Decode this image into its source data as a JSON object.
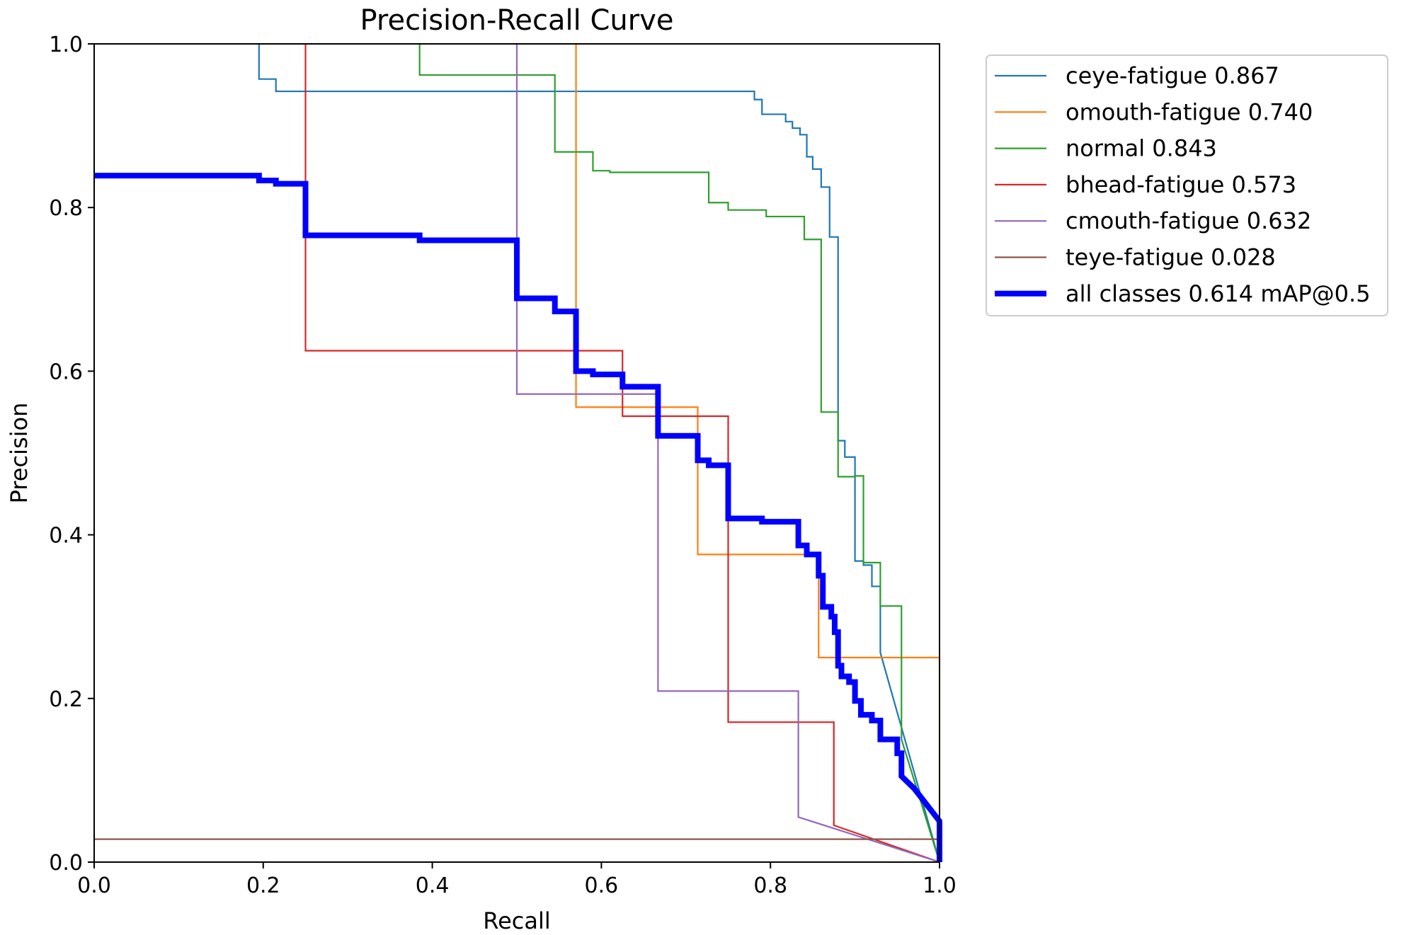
{
  "chart_data": {
    "type": "line",
    "title": "Precision-Recall Curve",
    "xlabel": "Recall",
    "ylabel": "Precision",
    "xlim": [
      0,
      1
    ],
    "ylim": [
      0,
      1
    ],
    "xticks": [
      0.0,
      0.2,
      0.4,
      0.6,
      0.8,
      1.0
    ],
    "yticks": [
      0.0,
      0.2,
      0.4,
      0.6,
      0.8,
      1.0
    ],
    "xtick_labels": [
      "0.0",
      "0.2",
      "0.4",
      "0.6",
      "0.8",
      "1.0"
    ],
    "ytick_labels": [
      "0.0",
      "0.2",
      "0.4",
      "0.6",
      "0.8",
      "1.0"
    ],
    "grid": false,
    "legend_position": "outside-top-right",
    "series": [
      {
        "name": "ceye-fatigue",
        "legend_label": "ceye-fatigue 0.867",
        "ap": 0.867,
        "color": "#1f77b4",
        "emphasis": false,
        "points": [
          [
            0.195,
            1.0
          ],
          [
            0.195,
            0.957
          ],
          [
            0.215,
            0.957
          ],
          [
            0.215,
            0.942
          ],
          [
            0.781,
            0.942
          ],
          [
            0.781,
            0.932
          ],
          [
            0.79,
            0.932
          ],
          [
            0.79,
            0.914
          ],
          [
            0.818,
            0.914
          ],
          [
            0.818,
            0.905
          ],
          [
            0.826,
            0.905
          ],
          [
            0.826,
            0.897
          ],
          [
            0.835,
            0.897
          ],
          [
            0.835,
            0.889
          ],
          [
            0.843,
            0.889
          ],
          [
            0.843,
            0.862
          ],
          [
            0.85,
            0.862
          ],
          [
            0.85,
            0.847
          ],
          [
            0.86,
            0.847
          ],
          [
            0.86,
            0.825
          ],
          [
            0.87,
            0.825
          ],
          [
            0.87,
            0.764
          ],
          [
            0.88,
            0.764
          ],
          [
            0.88,
            0.515
          ],
          [
            0.888,
            0.515
          ],
          [
            0.888,
            0.495
          ],
          [
            0.9,
            0.495
          ],
          [
            0.9,
            0.368
          ],
          [
            0.91,
            0.368
          ],
          [
            0.91,
            0.363
          ],
          [
            0.92,
            0.363
          ],
          [
            0.92,
            0.337
          ],
          [
            0.93,
            0.337
          ],
          [
            0.93,
            0.256
          ],
          [
            1.0,
            0.0
          ]
        ]
      },
      {
        "name": "omouth-fatigue",
        "legend_label": "omouth-fatigue 0.740",
        "ap": 0.74,
        "color": "#ff7f0e",
        "emphasis": false,
        "points": [
          [
            0.57,
            1.0
          ],
          [
            0.57,
            0.556
          ],
          [
            0.714,
            0.556
          ],
          [
            0.714,
            0.376
          ],
          [
            0.857,
            0.376
          ],
          [
            0.857,
            0.25
          ],
          [
            1.0,
            0.25
          ],
          [
            1.0,
            0.0
          ]
        ]
      },
      {
        "name": "normal",
        "legend_label": "normal 0.843",
        "ap": 0.843,
        "color": "#2ca02c",
        "emphasis": false,
        "points": [
          [
            0.385,
            1.0
          ],
          [
            0.385,
            0.962
          ],
          [
            0.545,
            0.962
          ],
          [
            0.545,
            0.868
          ],
          [
            0.59,
            0.868
          ],
          [
            0.59,
            0.845
          ],
          [
            0.61,
            0.845
          ],
          [
            0.61,
            0.843
          ],
          [
            0.727,
            0.843
          ],
          [
            0.727,
            0.806
          ],
          [
            0.75,
            0.806
          ],
          [
            0.75,
            0.797
          ],
          [
            0.795,
            0.797
          ],
          [
            0.795,
            0.789
          ],
          [
            0.84,
            0.789
          ],
          [
            0.84,
            0.761
          ],
          [
            0.86,
            0.761
          ],
          [
            0.86,
            0.55
          ],
          [
            0.88,
            0.55
          ],
          [
            0.88,
            0.471
          ],
          [
            0.9,
            0.471
          ],
          [
            0.9,
            0.472
          ],
          [
            0.91,
            0.472
          ],
          [
            0.91,
            0.366
          ],
          [
            0.93,
            0.366
          ],
          [
            0.93,
            0.313
          ],
          [
            0.955,
            0.313
          ],
          [
            0.955,
            0.15
          ],
          [
            1.0,
            0.0
          ]
        ]
      },
      {
        "name": "bhead-fatigue",
        "legend_label": "bhead-fatigue 0.573",
        "ap": 0.573,
        "color": "#d62728",
        "emphasis": false,
        "points": [
          [
            0.25,
            1.0
          ],
          [
            0.25,
            0.625
          ],
          [
            0.625,
            0.625
          ],
          [
            0.625,
            0.545
          ],
          [
            0.75,
            0.545
          ],
          [
            0.75,
            0.171
          ],
          [
            0.875,
            0.171
          ],
          [
            0.875,
            0.045
          ],
          [
            1.0,
            0.0
          ]
        ]
      },
      {
        "name": "cmouth-fatigue",
        "legend_label": "cmouth-fatigue 0.632",
        "ap": 0.632,
        "color": "#9467bd",
        "emphasis": false,
        "points": [
          [
            0.5,
            1.0
          ],
          [
            0.5,
            0.572
          ],
          [
            0.667,
            0.572
          ],
          [
            0.667,
            0.209
          ],
          [
            0.833,
            0.209
          ],
          [
            0.833,
            0.055
          ],
          [
            1.0,
            0.0
          ]
        ]
      },
      {
        "name": "teye-fatigue",
        "legend_label": "teye-fatigue 0.028",
        "ap": 0.028,
        "color": "#8c564b",
        "emphasis": false,
        "points": [
          [
            0.0,
            0.028
          ],
          [
            1.0,
            0.028
          ]
        ]
      },
      {
        "name": "all classes",
        "legend_label": "all classes 0.614 mAP@0.5",
        "ap": 0.614,
        "color": "#0000ff",
        "emphasis": true,
        "points": [
          [
            0.0,
            0.839
          ],
          [
            0.195,
            0.839
          ],
          [
            0.195,
            0.833
          ],
          [
            0.215,
            0.833
          ],
          [
            0.215,
            0.829
          ],
          [
            0.25,
            0.829
          ],
          [
            0.25,
            0.766
          ],
          [
            0.385,
            0.766
          ],
          [
            0.385,
            0.76
          ],
          [
            0.5,
            0.76
          ],
          [
            0.5,
            0.689
          ],
          [
            0.545,
            0.689
          ],
          [
            0.545,
            0.673
          ],
          [
            0.57,
            0.673
          ],
          [
            0.57,
            0.6
          ],
          [
            0.59,
            0.6
          ],
          [
            0.59,
            0.596
          ],
          [
            0.625,
            0.596
          ],
          [
            0.625,
            0.581
          ],
          [
            0.667,
            0.581
          ],
          [
            0.667,
            0.521
          ],
          [
            0.714,
            0.521
          ],
          [
            0.714,
            0.491
          ],
          [
            0.727,
            0.491
          ],
          [
            0.727,
            0.485
          ],
          [
            0.75,
            0.485
          ],
          [
            0.75,
            0.42
          ],
          [
            0.79,
            0.42
          ],
          [
            0.79,
            0.416
          ],
          [
            0.833,
            0.416
          ],
          [
            0.833,
            0.387
          ],
          [
            0.843,
            0.387
          ],
          [
            0.843,
            0.376
          ],
          [
            0.857,
            0.376
          ],
          [
            0.857,
            0.35
          ],
          [
            0.862,
            0.35
          ],
          [
            0.862,
            0.312
          ],
          [
            0.872,
            0.312
          ],
          [
            0.872,
            0.3
          ],
          [
            0.876,
            0.3
          ],
          [
            0.876,
            0.281
          ],
          [
            0.88,
            0.281
          ],
          [
            0.88,
            0.24
          ],
          [
            0.884,
            0.24
          ],
          [
            0.884,
            0.227
          ],
          [
            0.893,
            0.227
          ],
          [
            0.893,
            0.22
          ],
          [
            0.9,
            0.22
          ],
          [
            0.9,
            0.197
          ],
          [
            0.907,
            0.197
          ],
          [
            0.907,
            0.18
          ],
          [
            0.92,
            0.18
          ],
          [
            0.92,
            0.173
          ],
          [
            0.93,
            0.173
          ],
          [
            0.93,
            0.15
          ],
          [
            0.95,
            0.15
          ],
          [
            0.95,
            0.133
          ],
          [
            0.955,
            0.133
          ],
          [
            0.955,
            0.105
          ],
          [
            0.97,
            0.09
          ],
          [
            1.0,
            0.05
          ],
          [
            1.0,
            0.0
          ]
        ]
      }
    ]
  }
}
